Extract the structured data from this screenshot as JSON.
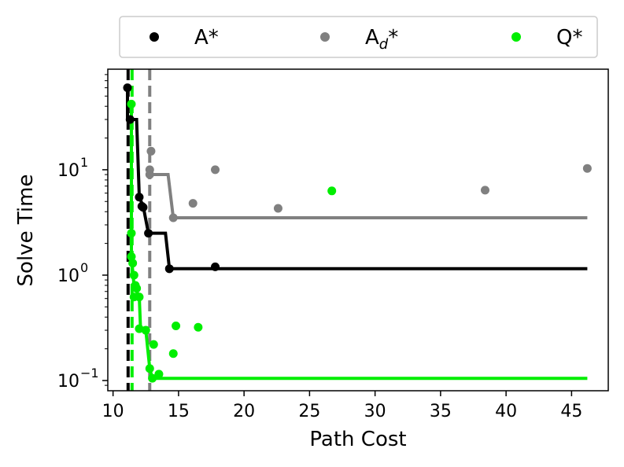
{
  "chart_data": {
    "type": "scatter",
    "xlabel": "Path Cost",
    "ylabel": "Solve Time",
    "xlim": [
      9.6,
      47.8
    ],
    "ylim": [
      0.08,
      90
    ],
    "yscale": "log",
    "xticks": [
      "10",
      "15",
      "20",
      "25",
      "30",
      "35",
      "40",
      "45"
    ],
    "xtick_values": [
      10,
      15,
      20,
      25,
      30,
      35,
      40,
      45
    ],
    "ytick_values": [
      0.1,
      1,
      10
    ],
    "ytick_labels": [
      {
        "base": "10",
        "exp": "−1"
      },
      {
        "base": "10",
        "exp": "0"
      },
      {
        "base": "10",
        "exp": "1"
      }
    ],
    "legend_position": "top, outside plot",
    "grid": false,
    "series": [
      {
        "name": "A*",
        "name_base": "A",
        "name_sub": "",
        "name_suffix": "*",
        "color": "#000000",
        "points": [
          [
            11.1,
            60
          ],
          [
            11.3,
            30
          ],
          [
            12.0,
            5.5
          ],
          [
            12.2,
            4.5
          ],
          [
            12.3,
            4.4
          ],
          [
            12.7,
            2.5
          ],
          [
            14.3,
            1.15
          ],
          [
            17.8,
            1.2
          ]
        ],
        "frontier": [
          [
            11.1,
            60
          ],
          [
            11.1,
            30
          ],
          [
            11.8,
            30
          ],
          [
            12.0,
            5.5
          ],
          [
            12.3,
            4.5
          ],
          [
            12.7,
            2.5
          ],
          [
            14.0,
            2.5
          ],
          [
            14.3,
            1.15
          ],
          [
            46.2,
            1.15
          ]
        ],
        "vline": 11.15
      },
      {
        "name": "Ad*",
        "name_base": "A",
        "name_sub": "d",
        "name_suffix": "*",
        "color": "#808080",
        "points": [
          [
            12.9,
            15
          ],
          [
            12.8,
            10
          ],
          [
            12.8,
            9
          ],
          [
            14.6,
            3.5
          ],
          [
            16.1,
            4.8
          ],
          [
            17.8,
            10
          ],
          [
            22.6,
            4.3
          ],
          [
            38.4,
            6.4
          ],
          [
            46.2,
            10.3
          ]
        ],
        "frontier": [
          [
            12.8,
            9
          ],
          [
            14.2,
            9
          ],
          [
            14.6,
            3.5
          ],
          [
            46.2,
            3.5
          ]
        ],
        "vline": 12.8
      },
      {
        "name": "Q*",
        "name_base": "Q",
        "name_sub": "",
        "name_suffix": "*",
        "color": "#00ee00",
        "points": [
          [
            11.4,
            42
          ],
          [
            11.4,
            2.5
          ],
          [
            11.4,
            1.5
          ],
          [
            11.5,
            1.3
          ],
          [
            11.6,
            1.0
          ],
          [
            11.7,
            0.8
          ],
          [
            11.8,
            0.75
          ],
          [
            11.6,
            0.62
          ],
          [
            12.0,
            0.62
          ],
          [
            12.0,
            0.31
          ],
          [
            12.5,
            0.3
          ],
          [
            12.8,
            0.13
          ],
          [
            13.0,
            0.105
          ],
          [
            13.1,
            0.22
          ],
          [
            13.5,
            0.115
          ],
          [
            14.6,
            0.18
          ],
          [
            14.8,
            0.33
          ],
          [
            16.5,
            0.32
          ],
          [
            26.7,
            6.3
          ]
        ],
        "frontier": [
          [
            11.4,
            42
          ],
          [
            11.4,
            1.5
          ],
          [
            11.6,
            0.8
          ],
          [
            12.0,
            0.62
          ],
          [
            12.1,
            0.31
          ],
          [
            12.5,
            0.3
          ],
          [
            12.8,
            0.13
          ],
          [
            13.0,
            0.105
          ],
          [
            46.2,
            0.105
          ]
        ],
        "vline": 11.45
      }
    ]
  }
}
